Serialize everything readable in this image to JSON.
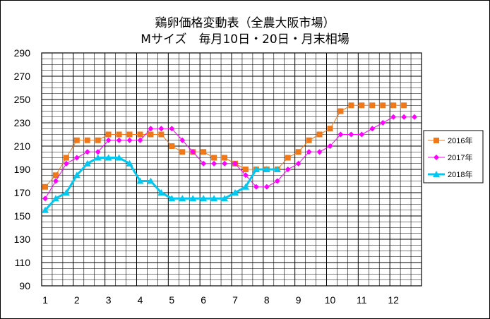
{
  "chart_data": {
    "type": "line",
    "title": "鶏卵価格変動表（全農大阪市場）",
    "subtitle": "Mサイズ　毎月10日・20日・月末相場",
    "xlabel": "",
    "ylabel": "",
    "x_ticks": [
      "1",
      "2",
      "3",
      "4",
      "5",
      "6",
      "7",
      "8",
      "9",
      "10",
      "11",
      "12"
    ],
    "ylim": [
      90,
      290
    ],
    "y_ticks": [
      90,
      110,
      130,
      150,
      170,
      190,
      210,
      230,
      250,
      270,
      290
    ],
    "grid": true,
    "legend_position": "right",
    "series": [
      {
        "name": "2016年",
        "color": "#f07818",
        "marker": "square",
        "values": [
          175,
          185,
          200,
          215,
          215,
          215,
          220,
          220,
          220,
          220,
          220,
          220,
          210,
          205,
          205,
          205,
          200,
          200,
          195,
          190,
          190,
          190,
          190,
          200,
          205,
          215,
          220,
          225,
          240,
          245,
          245,
          245,
          245,
          245,
          245
        ]
      },
      {
        "name": "2017年",
        "color": "#ff00ff",
        "marker": "diamond",
        "values": [
          165,
          180,
          195,
          200,
          205,
          205,
          215,
          215,
          215,
          215,
          225,
          225,
          225,
          215,
          205,
          195,
          195,
          195,
          195,
          185,
          175,
          175,
          180,
          190,
          195,
          205,
          205,
          210,
          220,
          220,
          220,
          225,
          230,
          235,
          235,
          235
        ]
      },
      {
        "name": "2018年",
        "color": "#00c8f0",
        "marker": "triangle",
        "values": [
          155,
          165,
          170,
          185,
          195,
          200,
          200,
          200,
          195,
          180,
          180,
          170,
          165,
          165,
          165,
          165,
          165,
          165,
          170,
          175,
          190,
          190,
          190
        ]
      }
    ]
  }
}
